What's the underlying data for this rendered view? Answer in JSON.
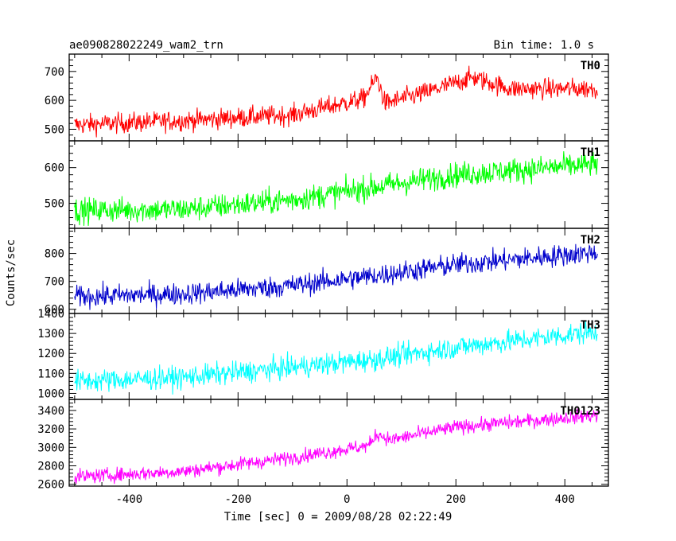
{
  "header": {
    "title": "ae090828022249_wam2_trn",
    "bin_time": "Bin time: 1.0 s"
  },
  "axes": {
    "ylabel": "Counts/sec",
    "xlabel": "Time [sec] 0 = 2009/08/28 02:22:49"
  },
  "chart_data": {
    "type": "line",
    "xlim": [
      -510,
      480
    ],
    "x_ticks": [
      -400,
      -200,
      0,
      200,
      400
    ],
    "x_sampling": {
      "start": -500,
      "end": 460,
      "step": 1
    },
    "panels": [
      {
        "name": "TH0",
        "color": "#ff0000",
        "ylim": [
          460,
          760
        ],
        "yticks": [
          500,
          600,
          700
        ],
        "trend": [
          [
            -500,
            515
          ],
          [
            -300,
            530
          ],
          [
            -100,
            550
          ],
          [
            30,
            605
          ],
          [
            55,
            680
          ],
          [
            70,
            590
          ],
          [
            150,
            630
          ],
          [
            230,
            680
          ],
          [
            300,
            640
          ],
          [
            460,
            640
          ]
        ],
        "noise": 25
      },
      {
        "name": "TH1",
        "color": "#00ff00",
        "ylim": [
          430,
          675
        ],
        "yticks": [
          500,
          600
        ],
        "trend": [
          [
            -500,
            480
          ],
          [
            -300,
            483
          ],
          [
            -100,
            510
          ],
          [
            50,
            545
          ],
          [
            200,
            580
          ],
          [
            460,
            610
          ]
        ],
        "noise": 25
      },
      {
        "name": "TH2",
        "color": "#0000cc",
        "ylim": [
          585,
          890
        ],
        "yticks": [
          600,
          700,
          800
        ],
        "trend": [
          [
            -500,
            645
          ],
          [
            -300,
            655
          ],
          [
            -100,
            685
          ],
          [
            50,
            720
          ],
          [
            200,
            760
          ],
          [
            460,
            805
          ]
        ],
        "noise": 28
      },
      {
        "name": "TH3",
        "color": "#00ffff",
        "ylim": [
          970,
          1400
        ],
        "yticks": [
          1000,
          1100,
          1200,
          1300,
          1400
        ],
        "trend": [
          [
            -500,
            1060
          ],
          [
            -300,
            1080
          ],
          [
            -100,
            1130
          ],
          [
            50,
            1170
          ],
          [
            200,
            1230
          ],
          [
            460,
            1310
          ]
        ],
        "noise": 40
      },
      {
        "name": "TH0123",
        "color": "#ff00ff",
        "ylim": [
          2580,
          3520
        ],
        "yticks": [
          2600,
          2800,
          3000,
          3200,
          3400
        ],
        "trend": [
          [
            -500,
            2680
          ],
          [
            -300,
            2740
          ],
          [
            -100,
            2890
          ],
          [
            40,
            3020
          ],
          [
            55,
            3150
          ],
          [
            80,
            3080
          ],
          [
            200,
            3220
          ],
          [
            460,
            3350
          ]
        ],
        "noise": 55
      }
    ]
  }
}
